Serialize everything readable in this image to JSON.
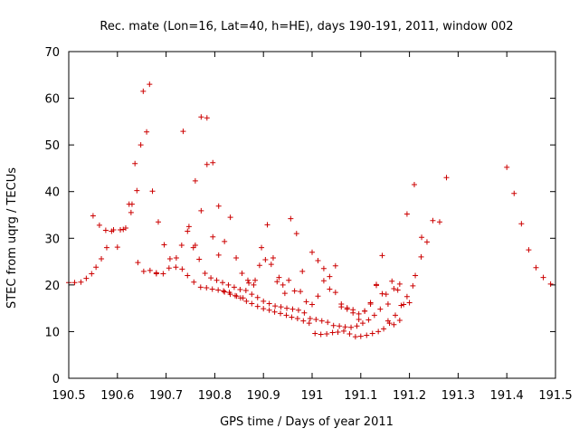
{
  "chart_data": {
    "type": "scatter",
    "title": "Rec. mate (Lon=16, Lat=40, h=HE), days 190-191, 2011, window 002",
    "xlabel": "GPS time / Days of year 2011",
    "ylabel": "STEC from uqrg / TECUs",
    "xlim": [
      190.5,
      191.5
    ],
    "ylim": [
      0,
      70
    ],
    "xticks": [
      190.5,
      190.6,
      190.7,
      190.8,
      190.9,
      191.0,
      191.1,
      191.2,
      191.3,
      191.4,
      191.5
    ],
    "xtick_labels": [
      "190.5",
      "190.6",
      "190.7",
      "190.8",
      "190.9",
      "191",
      "191.1",
      "191.2",
      "191.3",
      "191.4",
      "191.5"
    ],
    "yticks": [
      0,
      10,
      20,
      30,
      40,
      50,
      60,
      70
    ],
    "ytick_labels": [
      "0",
      "10",
      "20",
      "30",
      "40",
      "50",
      "60",
      "70"
    ],
    "grid": false,
    "marker": "+",
    "color": "#cc0000",
    "x": [
      190.5,
      190.512,
      190.525,
      190.536,
      190.547,
      190.556,
      190.567,
      190.578,
      190.592,
      190.606,
      190.617,
      190.628,
      190.64,
      190.653,
      190.666,
      190.68,
      190.694,
      190.706,
      190.721,
      190.733,
      190.744,
      190.757,
      190.771,
      190.783,
      190.795,
      190.807,
      190.818,
      190.83,
      190.842,
      190.853,
      190.865,
      190.876,
      190.888,
      190.9,
      190.912,
      190.923,
      190.935,
      190.947,
      190.958,
      190.97,
      190.982,
      190.994,
      191.006,
      191.018,
      191.03,
      191.042,
      191.053,
      191.065,
      191.077,
      191.089,
      191.1,
      191.112,
      191.124,
      191.136,
      191.147,
      191.159,
      191.171,
      191.183,
      191.195,
      191.207,
      190.55,
      190.563,
      190.576,
      190.588,
      190.6,
      190.612,
      190.624,
      190.636,
      190.648,
      190.66,
      190.672,
      190.684,
      190.696,
      190.708,
      190.72,
      190.732,
      190.744,
      190.756,
      190.768,
      190.78,
      190.792,
      190.804,
      190.816,
      190.828,
      190.84,
      190.852,
      190.864,
      190.876,
      190.888,
      190.9,
      190.912,
      190.924,
      190.936,
      190.948,
      190.96,
      190.972,
      190.984,
      190.996,
      191.008,
      191.02,
      191.032,
      191.044,
      191.056,
      191.068,
      191.08,
      191.092,
      191.104,
      191.116,
      191.128,
      191.14,
      191.152,
      191.164,
      191.176,
      191.188,
      191.2,
      191.212,
      191.224,
      191.236,
      191.248,
      191.262,
      191.276,
      190.63,
      190.642,
      190.654,
      190.667,
      190.68,
      190.735,
      190.747,
      190.76,
      190.772,
      190.784,
      190.796,
      190.808,
      190.82,
      190.832,
      190.844,
      190.856,
      190.868,
      190.88,
      190.892,
      190.904,
      190.916,
      190.928,
      190.94,
      190.952,
      190.964,
      190.976,
      190.988,
      191.0,
      191.012,
      191.024,
      191.036,
      191.048,
      191.06,
      191.072,
      191.084,
      191.096,
      191.108,
      191.12,
      191.132,
      191.144,
      191.156,
      191.168,
      191.18,
      190.76,
      190.772,
      190.784,
      190.796,
      190.808,
      190.82,
      190.832,
      190.845,
      190.858,
      190.87,
      190.883,
      190.896,
      190.908,
      190.92,
      190.932,
      190.944,
      190.956,
      190.968,
      190.98,
      191.0,
      191.012,
      191.024,
      191.036,
      191.048,
      191.06,
      191.072,
      191.084,
      191.096,
      191.108,
      191.12,
      191.132,
      191.144,
      191.156,
      191.168,
      191.18,
      191.195,
      191.21,
      191.225,
      191.4,
      191.415,
      191.43,
      191.445,
      191.46,
      191.475,
      191.49
    ],
    "y": [
      20.5,
      20.5,
      20.6,
      21.4,
      22.4,
      23.8,
      25.6,
      28.0,
      31.8,
      31.8,
      32.2,
      35.5,
      40.2,
      61.5,
      63.0,
      22.4,
      22.4,
      23.6,
      25.8,
      23.4,
      22.0,
      20.6,
      19.5,
      19.4,
      19.1,
      18.9,
      18.7,
      18.4,
      17.7,
      17.2,
      16.5,
      16.0,
      15.4,
      14.9,
      14.6,
      14.2,
      13.9,
      13.5,
      13.1,
      12.8,
      12.3,
      11.8,
      9.6,
      9.4,
      9.5,
      9.8,
      9.9,
      10.1,
      9.5,
      8.9,
      9.0,
      9.2,
      9.6,
      10.0,
      10.6,
      11.8,
      13.5,
      15.6,
      17.5,
      19.8,
      34.8,
      32.8,
      31.7,
      31.5,
      28.1,
      31.9,
      37.3,
      46.0,
      50.0,
      52.8,
      40.1,
      33.5,
      28.6,
      25.6,
      23.8,
      28.5,
      31.5,
      28.0,
      25.5,
      22.5,
      21.5,
      21.0,
      20.5,
      20.0,
      19.5,
      19.0,
      18.8,
      18.0,
      17.3,
      16.5,
      16.0,
      15.5,
      15.3,
      15.0,
      14.8,
      14.6,
      14.0,
      12.8,
      12.6,
      12.3,
      12.0,
      11.3,
      11.2,
      11.0,
      10.9,
      11.2,
      11.8,
      12.5,
      13.5,
      14.8,
      18.0,
      20.8,
      18.9,
      15.8,
      16.2,
      22.0,
      26.0,
      29.2,
      33.8,
      33.5,
      43.0,
      37.3,
      24.8,
      22.9,
      23.1,
      22.6,
      52.9,
      32.5,
      28.5,
      35.9,
      45.8,
      46.2,
      36.9,
      29.3,
      34.5,
      25.8,
      22.5,
      21.0,
      20.0,
      24.2,
      25.4,
      24.4,
      20.7,
      20.0,
      21.0,
      18.7,
      18.6,
      16.4,
      15.8,
      17.6,
      20.9,
      19.1,
      18.4,
      15.9,
      15.1,
      14.0,
      12.6,
      14.4,
      16.2,
      20.1,
      18.1,
      12.3,
      11.5,
      12.4,
      42.3,
      56.0,
      55.8,
      30.3,
      26.4,
      18.5,
      18.0,
      17.6,
      17.2,
      20.4,
      21.0,
      28.0,
      32.9,
      25.8,
      21.6,
      18.2,
      34.2,
      31.0,
      22.9,
      27.0,
      25.2,
      23.5,
      21.8,
      24.1,
      15.3,
      14.8,
      14.7,
      13.8,
      14.4,
      15.9,
      19.9,
      26.3,
      15.9,
      19.2,
      20.2,
      35.2,
      41.5,
      30.2,
      45.2,
      39.6,
      33.1,
      27.5,
      23.7,
      21.6,
      20.2
    ]
  }
}
